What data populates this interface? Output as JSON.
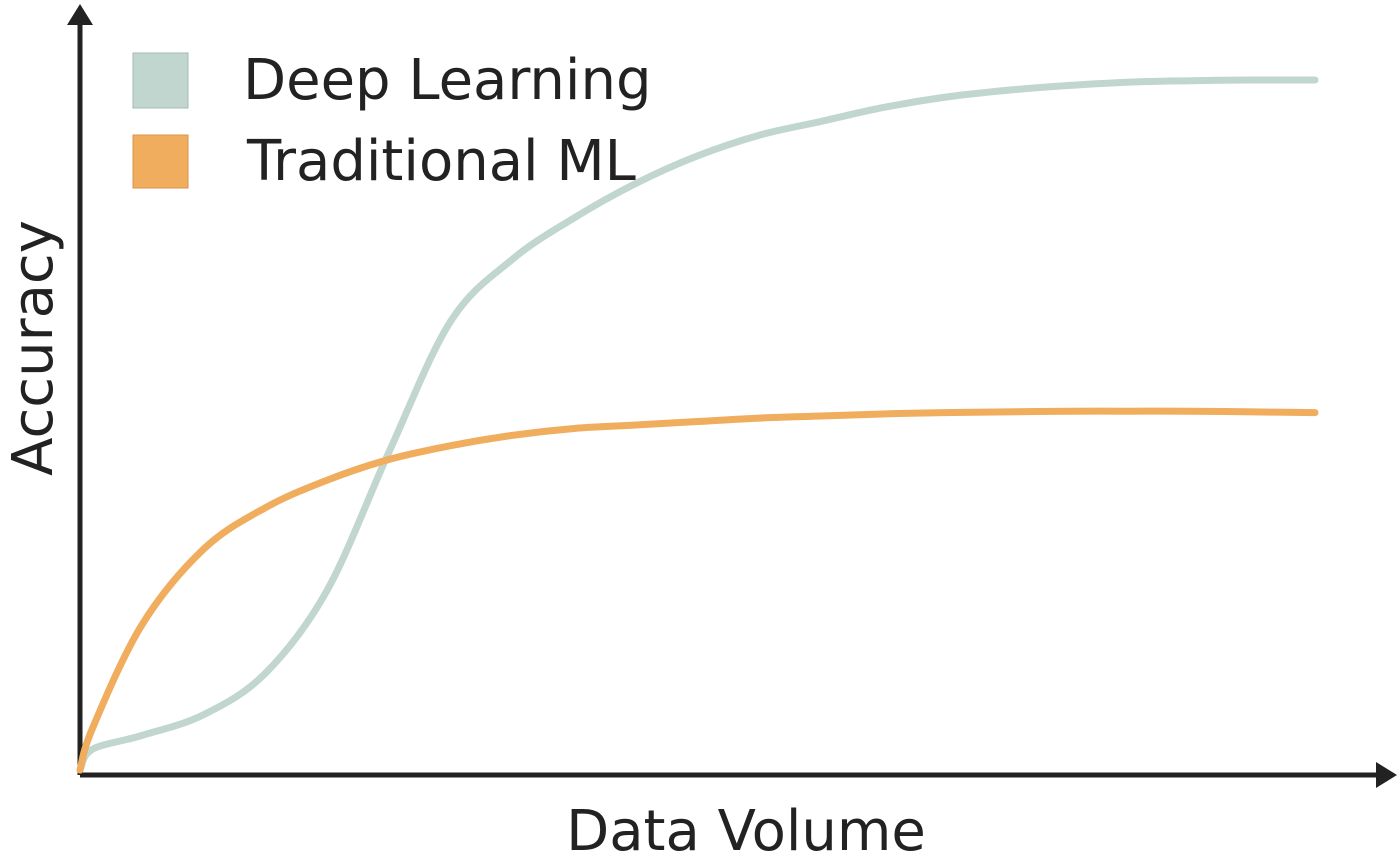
{
  "chart_data": {
    "type": "line",
    "title": "",
    "xlabel": "Data Volume",
    "ylabel": "Accuracy",
    "grid": false,
    "legend_position": "top-left",
    "xlim": [
      0,
      1
    ],
    "ylim": [
      0,
      1
    ],
    "series": [
      {
        "name": "Deep Learning",
        "color": "#c0d6cf",
        "x": [
          0,
          0.01,
          0.05,
          0.1,
          0.15,
          0.2,
          0.25,
          0.3,
          0.35,
          0.4,
          0.45,
          0.5,
          0.55,
          0.6,
          0.65,
          0.7,
          0.75,
          0.8,
          0.85,
          0.9,
          0.95,
          1.0
        ],
        "y": [
          0,
          0.03,
          0.05,
          0.08,
          0.14,
          0.26,
          0.46,
          0.65,
          0.74,
          0.8,
          0.85,
          0.89,
          0.92,
          0.94,
          0.96,
          0.975,
          0.985,
          0.992,
          0.997,
          0.999,
          1.0,
          1.0
        ]
      },
      {
        "name": "Traditional ML",
        "color": "#f0ad5e",
        "x": [
          0,
          0.01,
          0.05,
          0.1,
          0.15,
          0.2,
          0.25,
          0.3,
          0.35,
          0.4,
          0.45,
          0.5,
          0.55,
          0.6,
          0.65,
          0.7,
          0.75,
          0.8,
          0.85,
          0.9,
          0.95,
          1.0
        ],
        "y": [
          0,
          0.06,
          0.21,
          0.32,
          0.38,
          0.42,
          0.45,
          0.47,
          0.485,
          0.495,
          0.5,
          0.505,
          0.51,
          0.513,
          0.516,
          0.518,
          0.519,
          0.52,
          0.52,
          0.52,
          0.519,
          0.518
        ]
      }
    ]
  }
}
